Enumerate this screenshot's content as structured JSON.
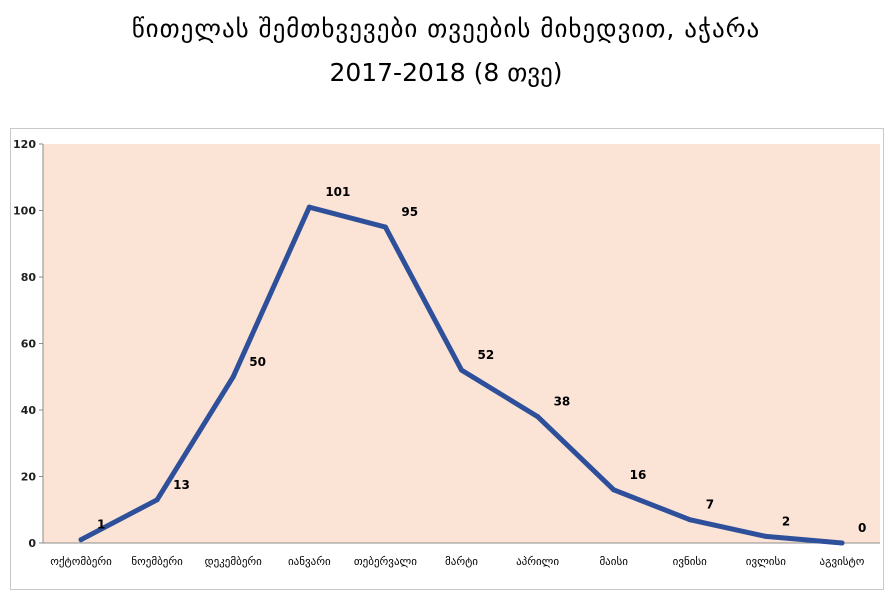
{
  "header": {
    "title_line1": "წითელას  შემთხვევები თვეების მიხედვით, აჭარა",
    "title_line2": "2017-2018 (8 თვე)"
  },
  "chart_data": {
    "type": "line",
    "title": "წითელას  შემთხვევები თვეების მიხედვით, აჭარა 2017-2018 (8 თვე)",
    "categories": [
      "ოქტომბერი",
      "ნოემბერი",
      "დეკემბერი",
      "იანვარი",
      "თებერვალი",
      "მარტი",
      "აპრილი",
      "მაისი",
      "ივნისი",
      "ივლისი",
      "აგვისტო"
    ],
    "series": [
      {
        "values": [
          1,
          13,
          50,
          101,
          95,
          52,
          38,
          16,
          7,
          2,
          0
        ]
      }
    ],
    "ylim": [
      0,
      120
    ],
    "yticks": [
      0,
      20,
      40,
      60,
      80,
      100,
      120
    ],
    "grid": false,
    "data_labels": true,
    "colors": {
      "line": "#2e4f9a",
      "plot_background": "#fbe3d6",
      "axis": "#8c8c8c"
    }
  }
}
